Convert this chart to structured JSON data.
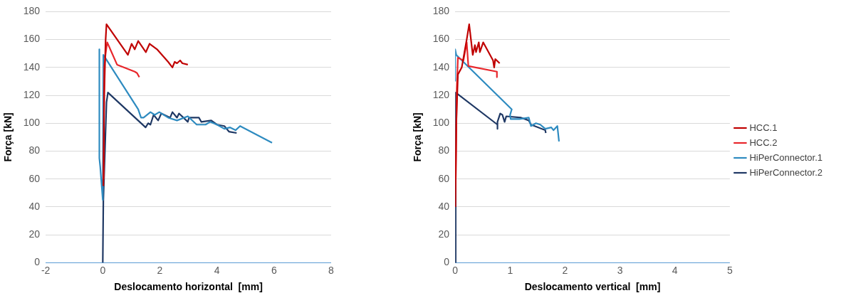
{
  "chart_data": [
    {
      "type": "line",
      "xlabel": "Deslocamento horizontal  [mm]",
      "ylabel": "Força [kN]",
      "xlim": [
        -2,
        8
      ],
      "xticks": [
        -2,
        0,
        2,
        4,
        6,
        8
      ],
      "ylim": [
        0,
        180
      ],
      "yticks": [
        0,
        20,
        40,
        60,
        80,
        100,
        120,
        140,
        160,
        180
      ],
      "grid": "y",
      "series": [
        {
          "color": "#c00000",
          "x": [
            0.02,
            0.05,
            0.1,
            0.13,
            0.88,
            1.01,
            1.12,
            1.24,
            1.51,
            1.64,
            1.9,
            2.29,
            2.44,
            2.52,
            2.6,
            2.71,
            2.79,
            2.98
          ],
          "values": [
            55,
            120,
            160,
            171,
            149,
            157,
            153,
            159,
            151,
            157,
            153,
            144,
            140,
            144,
            143,
            145,
            143,
            142
          ]
        },
        {
          "color": "#e8262b",
          "x": [
            0.03,
            0.05,
            0.1,
            0.155,
            0.5,
            1.12,
            1.2,
            1.28
          ],
          "values": [
            60,
            140,
            150,
            158,
            142,
            137,
            136,
            133
          ]
        },
        {
          "color": "#2e8bc0",
          "x": [
            -0.12,
            -0.12,
            -0.09,
            0,
            0.02,
            1.24,
            1.34,
            1.43,
            1.67,
            1.82,
            1.98,
            2.29,
            2.6,
            2.98,
            3.29,
            3.6,
            3.76,
            4,
            4.26,
            4.46,
            4.65,
            4.81,
            5.93
          ],
          "values": [
            153,
            75,
            69,
            45,
            149,
            110,
            104,
            104,
            108,
            106,
            108,
            104,
            102,
            105,
            99,
            99,
            101,
            99,
            96,
            97,
            95,
            98,
            86
          ]
        },
        {
          "color": "#1f3864",
          "x": [
            0,
            0.02,
            0.13,
            0.18,
            1.5,
            1.59,
            1.67,
            1.78,
            1.94,
            2.05,
            2.36,
            2.44,
            2.6,
            2.67,
            2.98,
            3.02,
            3.37,
            3.45,
            3.8,
            4,
            4.26,
            4.42,
            4.69
          ],
          "values": [
            0,
            45,
            115,
            122,
            97,
            100,
            99,
            106,
            102,
            107,
            104,
            108,
            104,
            107,
            101,
            104,
            104,
            101,
            102,
            99,
            98,
            94,
            93
          ]
        }
      ]
    },
    {
      "type": "line",
      "xlabel": "Deslocamento vertical  [mm]",
      "ylabel": "Força [kN]",
      "xlim": [
        0,
        5
      ],
      "xticks": [
        0,
        1,
        2,
        3,
        4,
        5
      ],
      "ylim": [
        0,
        180
      ],
      "yticks": [
        0,
        20,
        40,
        60,
        80,
        100,
        120,
        140,
        160,
        180
      ],
      "grid": "y",
      "legend": "right",
      "series": [
        {
          "name": "HCC.1",
          "color": "#c00000",
          "x": [
            0.005,
            0.02,
            0.05,
            0.12,
            0.21,
            0.255,
            0.32,
            0.36,
            0.38,
            0.43,
            0.45,
            0.51,
            0.69,
            0.71,
            0.73,
            0.81
          ],
          "values": [
            40,
            100,
            135,
            140,
            160,
            171,
            149,
            156,
            151,
            158,
            151,
            158,
            145,
            140,
            146,
            143
          ]
        },
        {
          "name": "HCC.2",
          "color": "#e8262b",
          "x": [
            0.01,
            0.03,
            0.05,
            0.15,
            0.21,
            0.24,
            0.76,
            0.76
          ],
          "values": [
            60,
            125,
            147,
            145,
            158,
            141,
            137,
            133
          ]
        },
        {
          "name": "HiPerConnector.1",
          "color": "#2e8bc0",
          "x": [
            0,
            0,
            0.02,
            1.03,
            1,
            1.01,
            1.17,
            1.34,
            1.38,
            1.47,
            1.55,
            1.64,
            1.75,
            1.79,
            1.86,
            1.89
          ],
          "values": [
            130,
            153,
            149,
            110,
            106,
            103,
            103,
            104,
            98,
            100,
            99,
            96,
            97,
            95,
            98,
            87
          ]
        },
        {
          "name": "HiPerConnector.2",
          "color": "#1f3864",
          "x": [
            0,
            0.01,
            0.77,
            0.77,
            0.77,
            0.82,
            0.86,
            0.9,
            0.93,
            1.2,
            1.34,
            1.38,
            1.64,
            1.65
          ],
          "values": [
            0,
            122,
            99,
            96,
            101,
            107,
            106,
            101,
            105,
            104,
            102,
            99,
            95,
            93
          ]
        }
      ]
    }
  ]
}
